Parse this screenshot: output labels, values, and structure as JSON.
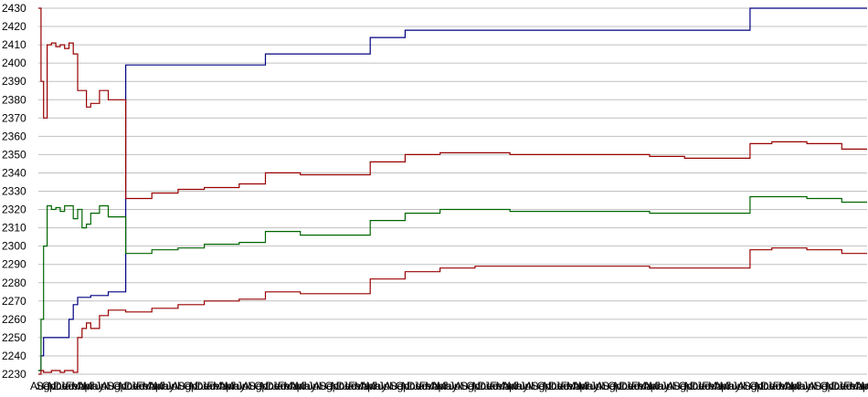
{
  "chart_data": {
    "type": "line",
    "title": "",
    "xlabel": "",
    "ylabel": "",
    "ylim": [
      2230,
      2430
    ],
    "ystep": 10,
    "grid": true,
    "legend": "none",
    "x_tick_labels": [
      "Aug",
      "Sep",
      "Oct",
      "Nov",
      "Dec",
      "Jan",
      "Feb",
      "Mar",
      "Apr",
      "May",
      "Jun",
      "Jul",
      "Aug",
      "Sep",
      "Oct",
      "Nov",
      "Dec",
      "Jan",
      "Feb",
      "Mar",
      "Apr",
      "May",
      "Jun",
      "Jul",
      "Aug",
      "Sep",
      "Oct",
      "Nov",
      "Dec",
      "Jan",
      "Feb",
      "Mar",
      "Apr",
      "May",
      "Jun",
      "Jul",
      "Aug",
      "Sep",
      "Oct",
      "Nov",
      "Dec",
      "Jan",
      "Feb",
      "Mar",
      "Apr",
      "May",
      "Jun",
      "Jul",
      "Aug",
      "Sep",
      "Oct",
      "Nov",
      "Dec",
      "Jan",
      "Feb",
      "Mar",
      "Apr",
      "May",
      "Jun",
      "Jul",
      "Aug",
      "Sep",
      "Oct",
      "Nov",
      "Dec",
      "Jan",
      "Feb",
      "Mar",
      "Apr",
      "May",
      "Jun",
      "Jul",
      "Aug",
      "Sep",
      "Oct",
      "Nov",
      "Dec",
      "Jan",
      "Feb",
      "Mar",
      "Apr",
      "May",
      "Jun",
      "Jul",
      "Aug",
      "Sep",
      "Oct",
      "Nov",
      "Dec",
      "Jan",
      "Feb",
      "Mar",
      "Apr",
      "May",
      "Jun",
      "Jul",
      "Aug",
      "Sep",
      "Oct",
      "Nov",
      "Dec",
      "Jan",
      "Feb",
      "Mar",
      "Apr",
      "May",
      "Jun",
      "Jul",
      "Aug",
      "Sep",
      "Oct",
      "Nov",
      "Dec",
      "Jan",
      "Feb",
      "Mar",
      "Apr",
      "May",
      "Jun",
      "Jul",
      "Aug",
      "Sep",
      "Oct",
      "Nov",
      "Dec",
      "Jan",
      "Feb",
      "Mar",
      "Apr",
      "May",
      "Jun",
      "Jul",
      "Aug",
      "Sep",
      "Oct",
      "Nov",
      "Dec",
      "Jan",
      "Feb",
      "Mar",
      "Apr",
      "May",
      "Jun"
    ],
    "x": [
      0,
      3,
      6,
      10,
      15,
      20,
      25,
      30,
      35,
      40,
      45,
      50,
      55,
      60,
      70,
      80,
      100,
      130,
      160,
      190,
      230,
      260,
      300,
      340,
      380,
      420,
      460,
      500,
      540,
      580,
      620,
      660,
      700,
      740,
      760,
      790,
      813,
      815,
      840,
      880,
      920,
      949
    ],
    "series": [
      {
        "color": "#000080",
        "values": [
          2232,
          2240,
          2250,
          2250,
          2250,
          2250,
          2250,
          2250,
          2260,
          2268,
          2272,
          2272,
          2272,
          2273,
          2273,
          2275,
          2399,
          2399,
          2399,
          2399,
          2399,
          2405,
          2405,
          2405,
          2414,
          2418,
          2418,
          2418,
          2418,
          2418,
          2418,
          2418,
          2418,
          2418,
          2418,
          2418,
          2418,
          2430,
          2430,
          2430,
          2430,
          2430
        ]
      },
      {
        "color": "#990000",
        "values": [
          2430,
          2390,
          2370,
          2410,
          2411,
          2409,
          2410,
          2408,
          2411,
          2405,
          2385,
          2385,
          2376,
          2378,
          2385,
          2380,
          2326,
          2329,
          2331,
          2332,
          2334,
          2340,
          2339,
          2339,
          2346,
          2350,
          2351,
          2351,
          2350,
          2350,
          2350,
          2350,
          2349,
          2348,
          2348,
          2348,
          2348,
          2356,
          2357,
          2356,
          2353,
          2353
        ]
      },
      {
        "color": "#006600",
        "values": [
          2232,
          2260,
          2300,
          2322,
          2320,
          2321,
          2319,
          2322,
          2322,
          2315,
          2320,
          2310,
          2312,
          2318,
          2322,
          2316,
          2296,
          2298,
          2299,
          2301,
          2302,
          2308,
          2306,
          2306,
          2314,
          2318,
          2320,
          2320,
          2319,
          2319,
          2319,
          2319,
          2318,
          2318,
          2318,
          2318,
          2318,
          2327,
          2327,
          2326,
          2324,
          2324
        ]
      },
      {
        "color": "#990000",
        "values": [
          2230,
          2232,
          2231,
          2231,
          2232,
          2232,
          2231,
          2232,
          2232,
          2231,
          2250,
          2255,
          2258,
          2255,
          2262,
          2265,
          2264,
          2266,
          2268,
          2270,
          2271,
          2275,
          2274,
          2274,
          2282,
          2286,
          2288,
          2289,
          2289,
          2289,
          2289,
          2289,
          2288,
          2288,
          2288,
          2288,
          2288,
          2298,
          2299,
          2298,
          2296,
          2296
        ]
      }
    ]
  }
}
